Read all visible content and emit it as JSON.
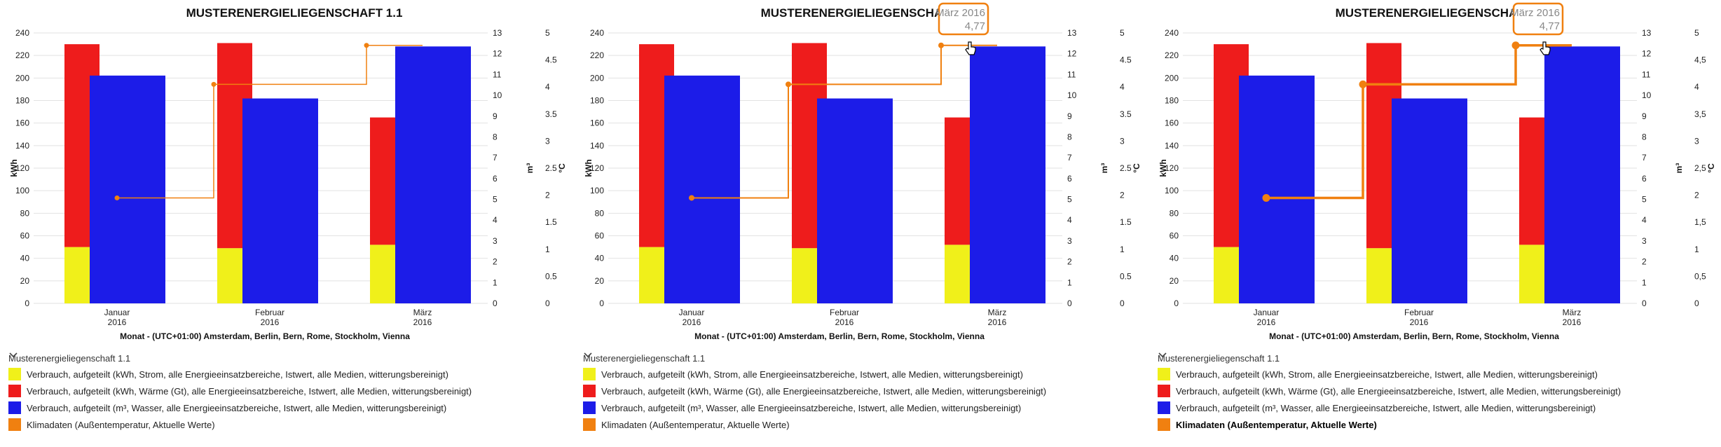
{
  "chart_data": [
    {
      "type": "bar",
      "title": "MUSTERENERGIELIEGENSCHAFT 1.1",
      "categories": [
        [
          "Januar",
          "2016"
        ],
        [
          "Februar",
          "2016"
        ],
        [
          "März",
          "2016"
        ]
      ],
      "xlabel": "Monat - (UTC+01:00) Amsterdam, Berlin, Bern, Rome, Stockholm, Vienna",
      "ylabel_left": "kWh",
      "ylabel_m3": "m³",
      "ylabel_temp": "°C",
      "ylim_kwh": [
        0,
        240
      ],
      "ylim_m3": [
        0,
        13
      ],
      "ylim_temp": [
        0,
        5
      ],
      "kwh_ticks": [
        "0",
        "20",
        "40",
        "60",
        "80",
        "100",
        "120",
        "140",
        "160",
        "180",
        "200",
        "220",
        "240"
      ],
      "m3_ticks": [
        "0",
        "1",
        "2",
        "3",
        "4",
        "5",
        "6",
        "7",
        "8",
        "9",
        "10",
        "11",
        "12",
        "13"
      ],
      "temp_ticks": [
        "0",
        "0.5",
        "1",
        "1.5",
        "2",
        "2.5",
        "3",
        "3.5",
        "4",
        "4.5",
        "5"
      ],
      "series": [
        {
          "name": "Verbrauch, aufgeteilt (kWh, Strom, alle Energieeinsatzbereiche, Istwert, alle Medien, witterungsbereinigt)",
          "values": [
            50,
            49,
            52
          ],
          "color": "#f0f01a"
        },
        {
          "name": "Verbrauch, aufgeteilt (kWh, Wärme (Gt), alle Energieeinsatzbereiche, Istwert, alle Medien, witterungsbereinigt)",
          "values": [
            180,
            182,
            113
          ],
          "color": "#ee1c1c"
        },
        {
          "name": "Verbrauch, aufgeteilt (m³, Wasser, alle Energieeinsatzbereiche, Istwert, alle Medien, witterungsbereinigt)",
          "values": [
            10.95,
            9.85,
            12.35
          ],
          "color": "#1c1ce8"
        },
        {
          "name": "Klimadaten (Außentemperatur, Aktuelle Werte)",
          "values": [
            1.95,
            4.05,
            4.77
          ],
          "color": "#f08010"
        }
      ],
      "tooltip": null,
      "grid": true
    },
    {
      "type": "bar",
      "title": "MUSTERENERGIELIEGENSCHAFT 1.1",
      "categories": [
        [
          "Januar",
          "2016"
        ],
        [
          "Februar",
          "2016"
        ],
        [
          "März",
          "2016"
        ]
      ],
      "xlabel": "Monat - (UTC+01:00) Amsterdam, Berlin, Bern, Rome, Stockholm, Vienna",
      "ylabel_left": "kWh",
      "ylabel_m3": "m³",
      "ylabel_temp": "°C",
      "ylim_kwh": [
        0,
        240
      ],
      "ylim_m3": [
        0,
        13
      ],
      "ylim_temp": [
        0,
        5
      ],
      "kwh_ticks": [
        "0",
        "20",
        "40",
        "60",
        "80",
        "100",
        "120",
        "140",
        "160",
        "180",
        "200",
        "220",
        "240"
      ],
      "m3_ticks": [
        "0",
        "1",
        "2",
        "3",
        "4",
        "5",
        "6",
        "7",
        "8",
        "9",
        "10",
        "11",
        "12",
        "13"
      ],
      "temp_ticks": [
        "0",
        "0.5",
        "1",
        "1.5",
        "2",
        "2.5",
        "3",
        "3.5",
        "4",
        "4.5",
        "5"
      ],
      "series": [
        {
          "name": "Verbrauch, aufgeteilt (kWh, Strom, alle Energieeinsatzbereiche, Istwert, alle Medien, witterungsbereinigt)",
          "values": [
            50,
            49,
            52
          ],
          "color": "#f0f01a"
        },
        {
          "name": "Verbrauch, aufgeteilt (kWh, Wärme (Gt), alle Energieeinsatzbereiche, Istwert, alle Medien, witterungsbereinigt)",
          "values": [
            180,
            182,
            113
          ],
          "color": "#ee1c1c"
        },
        {
          "name": "Verbrauch, aufgeteilt (m³, Wasser, alle Energieeinsatzbereiche, Istwert, alle Medien, witterungsbereinigt)",
          "values": [
            10.95,
            9.85,
            12.35
          ],
          "color": "#1c1ce8"
        },
        {
          "name": "Klimadaten (Außentemperatur, Aktuelle Werte)",
          "values": [
            1.95,
            4.05,
            4.77
          ],
          "color": "#f08010"
        }
      ],
      "tooltip": {
        "line1": "März 2016",
        "line2": "4,77"
      },
      "grid": true
    },
    {
      "type": "bar",
      "title": "MUSTERENERGIELIEGENSCHAFT 1.1",
      "categories": [
        [
          "Januar",
          "2016"
        ],
        [
          "Februar",
          "2016"
        ],
        [
          "März",
          "2016"
        ]
      ],
      "xlabel": "Monat - (UTC+01:00) Amsterdam, Berlin, Bern, Rome, Stockholm, Vienna",
      "ylabel_left": "kWh",
      "ylabel_m3": "m³",
      "ylabel_temp": "°C",
      "ylim_kwh": [
        0,
        240
      ],
      "ylim_m3": [
        0,
        13
      ],
      "ylim_temp": [
        0,
        5
      ],
      "kwh_ticks": [
        "0",
        "20",
        "40",
        "60",
        "80",
        "100",
        "120",
        "140",
        "160",
        "180",
        "200",
        "220",
        "240"
      ],
      "m3_ticks": [
        "0",
        "1",
        "2",
        "3",
        "4",
        "5",
        "6",
        "7",
        "8",
        "9",
        "10",
        "11",
        "12",
        "13"
      ],
      "temp_ticks": [
        "0",
        "0,5",
        "1",
        "1,5",
        "2",
        "2,5",
        "3",
        "3,5",
        "4",
        "4,5",
        "5"
      ],
      "series": [
        {
          "name": "Verbrauch, aufgeteilt (kWh, Strom, alle Energieeinsatzbereiche, Istwert, alle Medien, witterungsbereinigt)",
          "values": [
            50,
            49,
            52
          ],
          "color": "#f0f01a"
        },
        {
          "name": "Verbrauch, aufgeteilt (kWh, Wärme (Gt), alle Energieeinsatzbereiche, Istwert, alle Medien, witterungsbereinigt)",
          "values": [
            180,
            182,
            113
          ],
          "color": "#ee1c1c"
        },
        {
          "name": "Verbrauch, aufgeteilt (m³, Wasser, alle Energieeinsatzbereiche, Istwert, alle Medien, witterungsbereinigt)",
          "values": [
            10.95,
            9.85,
            12.35
          ],
          "color": "#1c1ce8"
        },
        {
          "name": "Klimadaten (Außentemperatur, Aktuelle Werte)",
          "values": [
            1.95,
            4.05,
            4.77
          ],
          "color": "#f08010"
        }
      ],
      "tooltip": {
        "line1": "März 2016",
        "line2": "4,77"
      },
      "grid": true
    }
  ],
  "panels": [
    {
      "legend": {
        "group_label": "Musterenergieliegenschaft 1.1",
        "items": [
          {
            "label": "Verbrauch, aufgeteilt (kWh, Strom, alle Energieeinsatzbereiche, Istwert, alle Medien, witterungsbereinigt)",
            "color": "#f0f01a"
          },
          {
            "label": "Verbrauch, aufgeteilt (kWh, Wärme (Gt), alle Energieeinsatzbereiche, Istwert, alle Medien, witterungsbereinigt)",
            "color": "#ee1c1c"
          },
          {
            "label": "Verbrauch, aufgeteilt (m³, Wasser, alle Energieeinsatzbereiche, Istwert, alle Medien, witterungsbereinigt)",
            "color": "#1c1ce8"
          },
          {
            "label": "Klimadaten (Außentemperatur, Aktuelle Werte)",
            "color": "#f08010"
          }
        ]
      }
    },
    {
      "legend": {
        "group_label": "Musterenergieliegenschaft 1.1",
        "items": [
          {
            "label": "Verbrauch, aufgeteilt (kWh, Strom, alle Energieeinsatzbereiche, Istwert, alle Medien, witterungsbereinigt)",
            "color": "#f0f01a"
          },
          {
            "label": "Verbrauch, aufgeteilt (kWh, Wärme (Gt), alle Energieeinsatzbereiche, Istwert, alle Medien, witterungsbereinigt)",
            "color": "#ee1c1c"
          },
          {
            "label": "Verbrauch, aufgeteilt (m³, Wasser, alle Energieeinsatzbereiche, Istwert, alle Medien, witterungsbereinigt)",
            "color": "#1c1ce8"
          },
          {
            "label": "Klimadaten (Außentemperatur, Aktuelle Werte)",
            "color": "#f08010"
          }
        ]
      }
    },
    {
      "legend": {
        "group_label": "Musterenergieliegenschaft 1.1",
        "items": [
          {
            "label": "Verbrauch, aufgeteilt (kWh, Strom, alle Energieeinsatzbereiche, Istwert, alle Medien, witterungsbereinigt)",
            "color": "#f0f01a"
          },
          {
            "label": "Verbrauch, aufgeteilt (kWh, Wärme (Gt), alle Energieeinsatzbereiche, Istwert, alle Medien, witterungsbereinigt)",
            "color": "#ee1c1c"
          },
          {
            "label": "Verbrauch, aufgeteilt (m³, Wasser, alle Energieeinsatzbereiche, Istwert, alle Medien, witterungsbereinigt)",
            "color": "#1c1ce8"
          },
          {
            "label": "Klimadaten (Außentemperatur, Aktuelle Werte)",
            "color": "#f08010"
          }
        ]
      }
    }
  ]
}
